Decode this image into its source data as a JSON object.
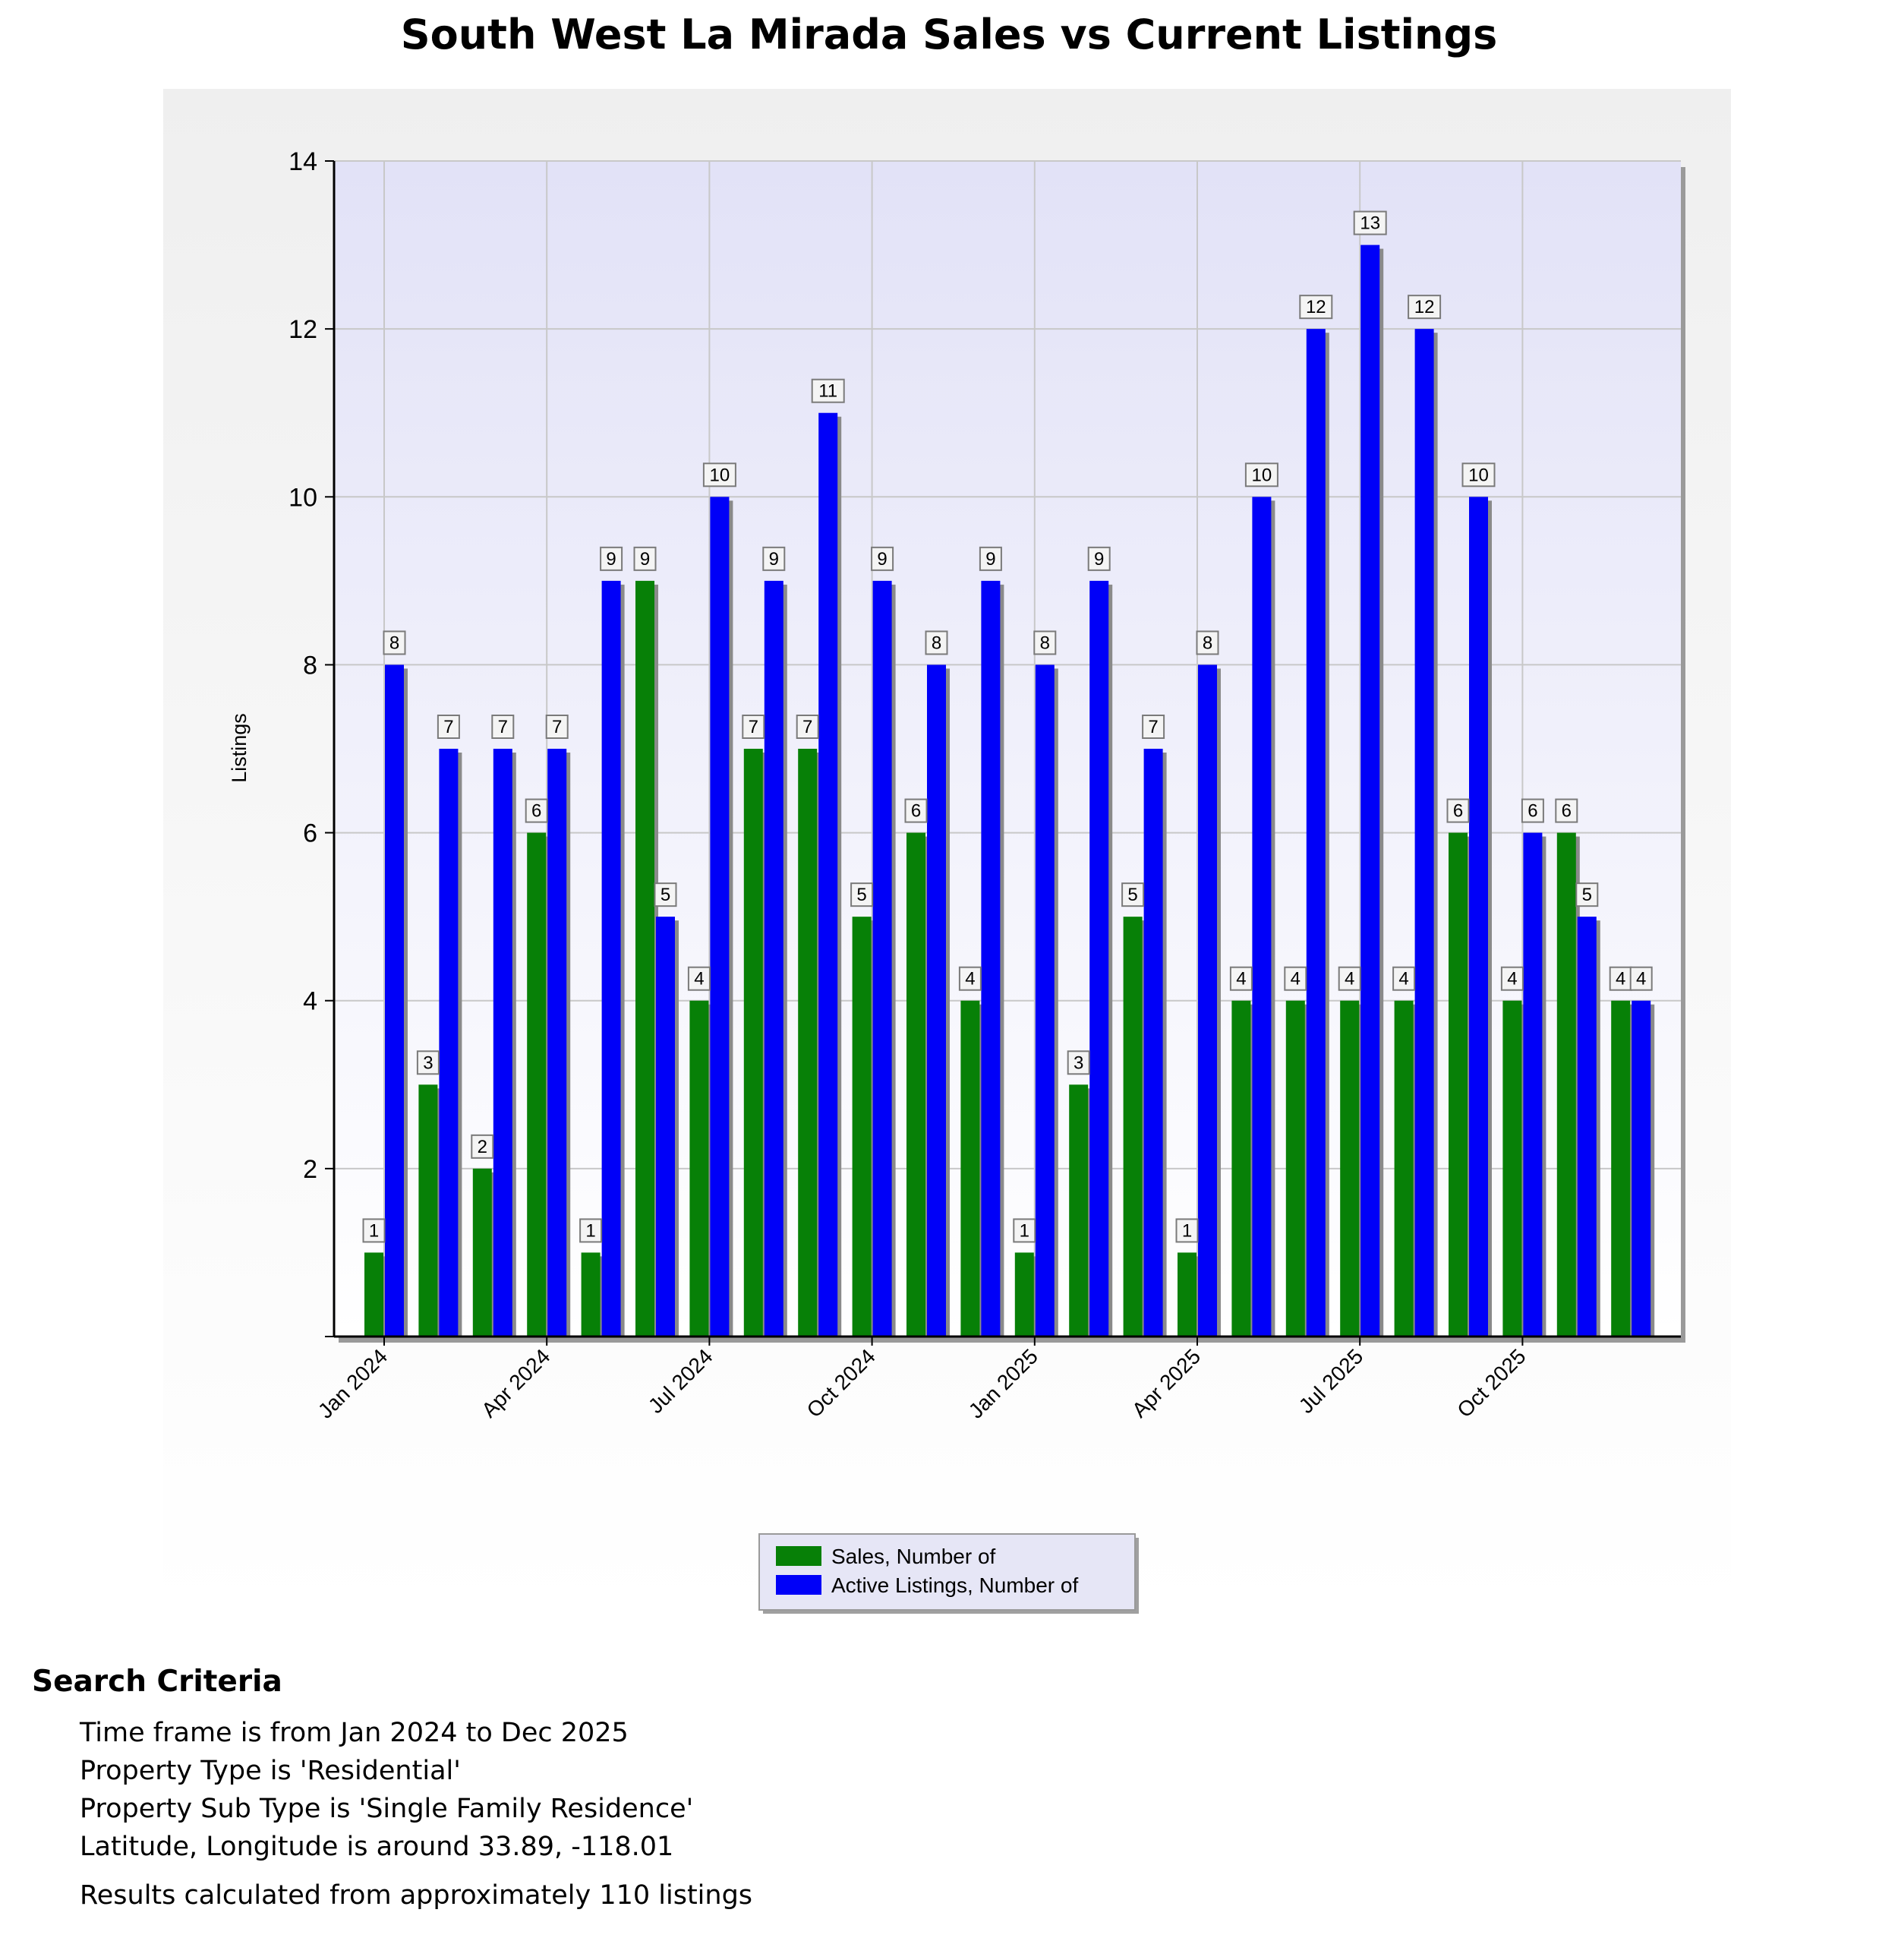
{
  "chart_data": {
    "type": "bar",
    "title": "South West La Mirada Sales vs Current Listings",
    "xlabel": "",
    "ylabel": "Listings",
    "ylim": [
      0,
      14
    ],
    "yticks": [
      2,
      4,
      6,
      8,
      10,
      12,
      14
    ],
    "grid": true,
    "legend_position": "bottom-center",
    "months": [
      "Jan 2024",
      "Feb 2024",
      "Mar 2024",
      "Apr 2024",
      "May 2024",
      "Jun 2024",
      "Jul 2024",
      "Aug 2024",
      "Sep 2024",
      "Oct 2024",
      "Nov 2024",
      "Dec 2024",
      "Jan 2025",
      "Feb 2025",
      "Mar 2025",
      "Apr 2025",
      "May 2025",
      "Jun 2025",
      "Jul 2025",
      "Aug 2025",
      "Sep 2025",
      "Oct 2025",
      "Nov 2025",
      "Dec 2025"
    ],
    "tick_labels": [
      {
        "index": 0,
        "label": "Jan 2024"
      },
      {
        "index": 3,
        "label": "Apr 2024"
      },
      {
        "index": 6,
        "label": "Jul 2024"
      },
      {
        "index": 9,
        "label": "Oct 2024"
      },
      {
        "index": 12,
        "label": "Jan 2025"
      },
      {
        "index": 15,
        "label": "Apr 2025"
      },
      {
        "index": 18,
        "label": "Jul 2025"
      },
      {
        "index": 21,
        "label": "Oct 2025"
      }
    ],
    "series": [
      {
        "name": "Sales, Number of",
        "color": "#078007",
        "values": [
          1,
          3,
          2,
          6,
          1,
          9,
          4,
          7,
          7,
          5,
          6,
          4,
          1,
          3,
          5,
          1,
          4,
          4,
          4,
          4,
          6,
          4,
          6,
          4
        ]
      },
      {
        "name": "Active Listings, Number of",
        "color": "#0000f8",
        "values": [
          8,
          7,
          7,
          7,
          9,
          5,
          10,
          9,
          11,
          9,
          8,
          9,
          8,
          9,
          7,
          8,
          10,
          12,
          13,
          12,
          10,
          6,
          5,
          4
        ]
      }
    ]
  },
  "search_criteria": {
    "heading": "Search Criteria",
    "lines": [
      "Time frame is from Jan 2024 to Dec 2025",
      "Property Type is 'Residential'",
      "Property Sub Type is 'Single Family Residence'",
      "Latitude, Longitude is around 33.89, -118.01"
    ],
    "result": "Results calculated from approximately 110 listings"
  }
}
